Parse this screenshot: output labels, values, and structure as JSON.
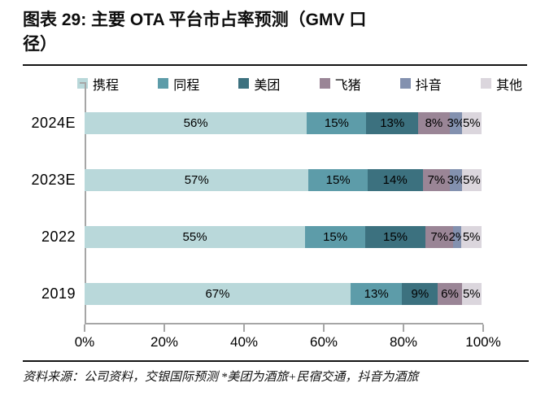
{
  "header": {
    "title_line1": "图表 29: 主要 OTA 平台市占率预测（GMV 口",
    "title_line2": "径）"
  },
  "footer": {
    "source_note": "资料来源：公司资料，交银国际预测  *美团为酒旅+民宿交通，抖音为酒旅"
  },
  "chart_data": {
    "type": "bar",
    "orientation": "horizontal-stacked",
    "title": "图表 29: 主要 OTA 平台市占率预测（GMV 口径）",
    "categories": [
      "2024E",
      "2023E",
      "2022",
      "2019"
    ],
    "series": [
      {
        "name": "携程",
        "color": "#b9d8da",
        "values": [
          56,
          57,
          55,
          67
        ]
      },
      {
        "name": "同程",
        "color": "#5d9ca9",
        "values": [
          15,
          15,
          15,
          13
        ]
      },
      {
        "name": "美团",
        "color": "#3c717f",
        "values": [
          13,
          14,
          15,
          9
        ]
      },
      {
        "name": "飞猪",
        "color": "#9a8596",
        "values": [
          8,
          7,
          7,
          6
        ]
      },
      {
        "name": "抖音",
        "color": "#8391af",
        "values": [
          3,
          3,
          2,
          0
        ]
      },
      {
        "name": "其他",
        "color": "#dbd6dd",
        "values": [
          5,
          5,
          5,
          5
        ]
      }
    ],
    "value_label_suffix": "%",
    "x_ticks": [
      "0%",
      "20%",
      "40%",
      "60%",
      "80%",
      "100%"
    ],
    "xlim": [
      0,
      100
    ],
    "legend_position": "top",
    "grid": false,
    "axis_color": "#a6a6a6",
    "label_color": "#000000"
  }
}
